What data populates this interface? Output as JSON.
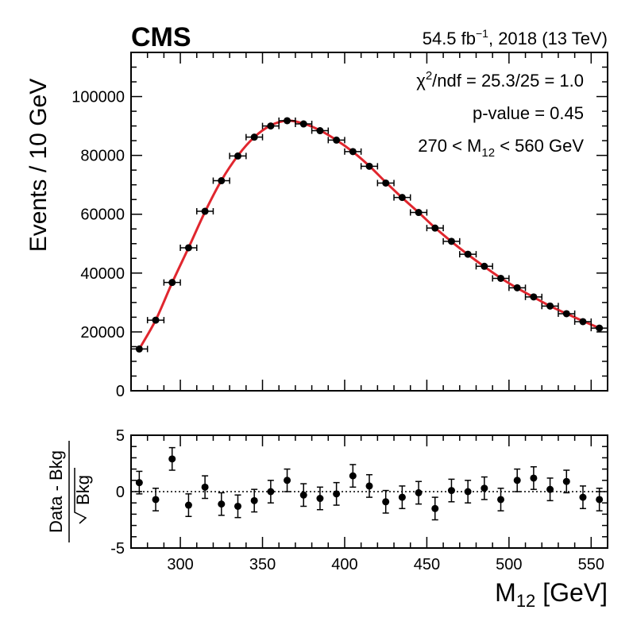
{
  "header": {
    "experiment": "CMS",
    "lumi_value": "54.5 fb",
    "lumi_exp": "−1",
    "lumi_rest": ", 2018 (13 TeV)"
  },
  "stats": {
    "chi2_sym": "χ",
    "chi2_exp": "2",
    "chi2_rest": "/ndf = 25.3/25 = 1.0",
    "pvalue": "p-value = 0.45",
    "range_pre": "270 < M",
    "range_sub": "12",
    "range_post": " < 560 GeV"
  },
  "axes": {
    "ylabel": "Events / 10 GeV",
    "xlabel_main": "M",
    "xlabel_sub": "12",
    "xlabel_unit": " [GeV]",
    "ratio_num": "Data - Bkg",
    "ratio_den": "Bkg"
  },
  "colors": {
    "fit": "#e0262e",
    "data": "#000000"
  },
  "chart_data": [
    {
      "type": "scatter",
      "title": "",
      "xlabel": "M12 [GeV]",
      "ylabel": "Events / 10 GeV",
      "xlim": [
        270,
        560
      ],
      "ylim": [
        0,
        115000
      ],
      "x_ticks": [
        300,
        350,
        400,
        450,
        500,
        550
      ],
      "y_ticks": [
        0,
        20000,
        40000,
        60000,
        80000,
        100000
      ],
      "bin_half_width": 5,
      "x": [
        275,
        285,
        295,
        305,
        315,
        325,
        335,
        345,
        355,
        365,
        375,
        385,
        395,
        405,
        415,
        425,
        435,
        445,
        455,
        465,
        475,
        485,
        495,
        505,
        515,
        525,
        535,
        545,
        555
      ],
      "series": [
        {
          "name": "Data",
          "values": [
            14200,
            24000,
            36800,
            48600,
            61000,
            71400,
            79800,
            86200,
            90000,
            91800,
            90700,
            88400,
            85200,
            81300,
            76300,
            70600,
            65700,
            60600,
            55300,
            50800,
            46400,
            42300,
            38200,
            35000,
            31900,
            28800,
            26200,
            23500,
            21300
          ]
        },
        {
          "name": "Fit",
          "values": [
            14200,
            24000,
            36700,
            48600,
            60800,
            71500,
            79900,
            86200,
            90200,
            91800,
            90800,
            88500,
            85200,
            81200,
            76400,
            70900,
            65600,
            60600,
            55400,
            50700,
            46300,
            42200,
            38300,
            34900,
            31800,
            28800,
            26200,
            23700,
            21300
          ]
        }
      ]
    },
    {
      "type": "scatter",
      "title": "",
      "xlabel": "M12 [GeV]",
      "ylabel": "(Data - Bkg) / sqrt(Bkg)",
      "xlim": [
        270,
        560
      ],
      "ylim": [
        -5,
        5
      ],
      "x_ticks": [
        300,
        350,
        400,
        450,
        500,
        550
      ],
      "y_ticks": [
        -5,
        0,
        5
      ],
      "x": [
        275,
        285,
        295,
        305,
        315,
        325,
        335,
        345,
        355,
        365,
        375,
        385,
        395,
        405,
        415,
        425,
        435,
        445,
        455,
        465,
        475,
        485,
        495,
        505,
        515,
        525,
        535,
        545,
        555
      ],
      "values": [
        0.8,
        -0.7,
        2.9,
        -1.2,
        0.4,
        -1.1,
        -1.3,
        -0.8,
        0.0,
        1.0,
        -0.3,
        -0.6,
        -0.2,
        1.4,
        0.5,
        -0.9,
        -0.5,
        -0.1,
        -1.5,
        0.1,
        0.0,
        0.3,
        -0.7,
        1.0,
        1.2,
        0.2,
        0.9,
        -0.5,
        -0.7
      ],
      "error": 1.0
    }
  ]
}
